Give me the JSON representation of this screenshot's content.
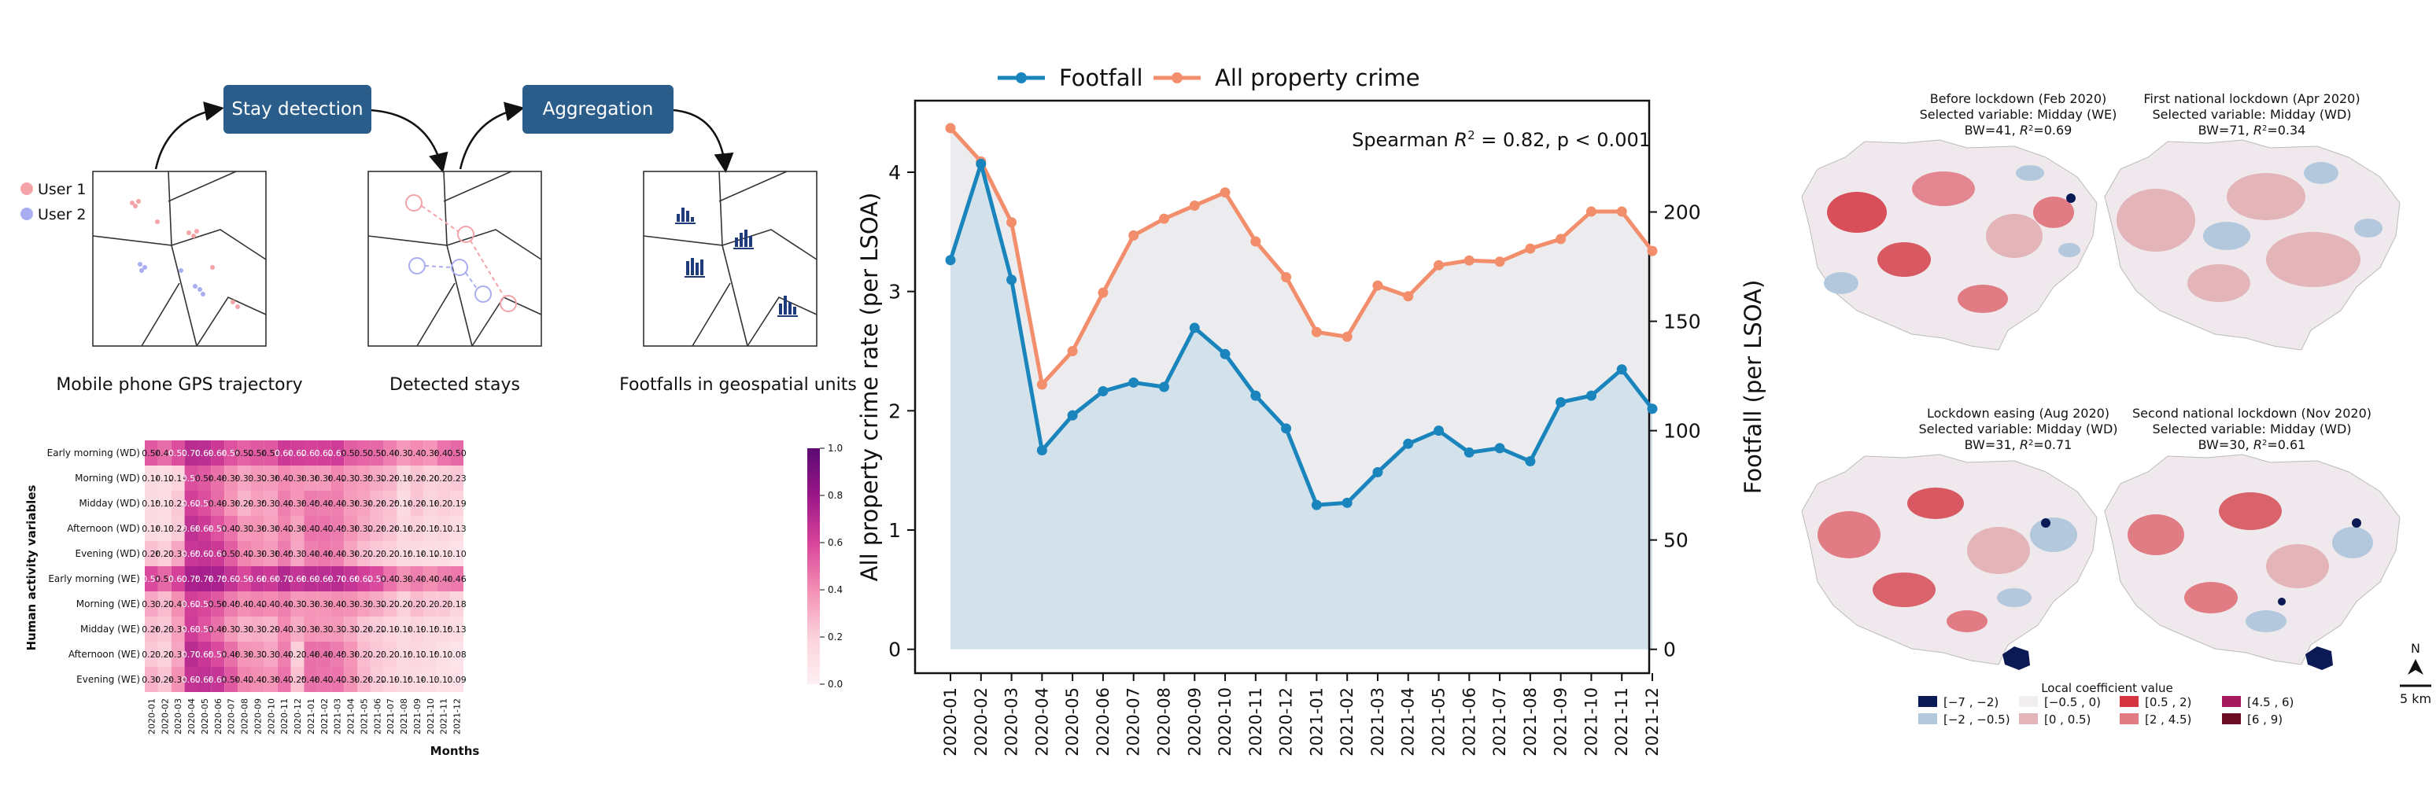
{
  "pipeline": {
    "steps": [
      "Stay detection",
      "Aggregation"
    ],
    "legend": [
      "User 1",
      "User 2"
    ],
    "captions": [
      "Mobile phone GPS trajectory",
      "Detected stays",
      "Footfalls in geospatial units"
    ],
    "colors": {
      "step_box": "#2a5d8a",
      "user1": "#f4a3a8",
      "user2": "#a9aef0",
      "bars": "#1f3b7a"
    }
  },
  "chart_data": [
    {
      "type": "heatmap",
      "xlabel": "Months",
      "ylabel": "Human activity  variables",
      "columns": [
        "2020-01",
        "2020-02",
        "2020-03",
        "2020-04",
        "2020-05",
        "2020-06",
        "2020-07",
        "2020-08",
        "2020-09",
        "2020-10",
        "2020-11",
        "2020-12",
        "2021-01",
        "2021-02",
        "2021-03",
        "2021-04",
        "2021-05",
        "2021-06",
        "2021-07",
        "2021-08",
        "2021-09",
        "2021-10",
        "2021-11",
        "2021-12"
      ],
      "rows": [
        "Early morning (WD)",
        "Morning (WD)",
        "Midday (WD)",
        "Afternoon (WD)",
        "Evening (WD)",
        "Early morning (WE)",
        "Morning (WE)",
        "Midday (WE)",
        "Afternoon (WE)",
        "Evening (WE)"
      ],
      "values": [
        [
          0.54,
          0.49,
          0.57,
          0.7,
          0.69,
          0.64,
          0.56,
          0.52,
          0.54,
          0.54,
          0.64,
          0.62,
          0.61,
          0.62,
          0.63,
          0.53,
          0.51,
          0.5,
          0.44,
          0.37,
          0.41,
          0.38,
          0.47,
          0.5
        ],
        [
          0.14,
          0.12,
          0.19,
          0.57,
          0.54,
          0.48,
          0.39,
          0.33,
          0.37,
          0.36,
          0.41,
          0.38,
          0.36,
          0.36,
          0.42,
          0.37,
          0.35,
          0.32,
          0.29,
          0.18,
          0.24,
          0.2,
          0.21,
          0.23
        ],
        [
          0.15,
          0.13,
          0.23,
          0.62,
          0.57,
          0.49,
          0.38,
          0.29,
          0.35,
          0.33,
          0.44,
          0.38,
          0.45,
          0.44,
          0.44,
          0.36,
          0.34,
          0.28,
          0.25,
          0.14,
          0.24,
          0.18,
          0.21,
          0.19
        ],
        [
          0.14,
          0.13,
          0.22,
          0.68,
          0.64,
          0.56,
          0.47,
          0.37,
          0.38,
          0.34,
          0.42,
          0.34,
          0.47,
          0.47,
          0.45,
          0.38,
          0.32,
          0.28,
          0.24,
          0.16,
          0.2,
          0.15,
          0.17,
          0.13
        ],
        [
          0.26,
          0.21,
          0.33,
          0.65,
          0.67,
          0.64,
          0.53,
          0.42,
          0.39,
          0.36,
          0.45,
          0.33,
          0.44,
          0.46,
          0.44,
          0.34,
          0.27,
          0.23,
          0.21,
          0.15,
          0.14,
          0.12,
          0.13,
          0.1
        ],
        [
          0.58,
          0.5,
          0.61,
          0.75,
          0.76,
          0.75,
          0.67,
          0.59,
          0.66,
          0.64,
          0.72,
          0.66,
          0.69,
          0.69,
          0.7,
          0.66,
          0.62,
          0.58,
          0.47,
          0.39,
          0.44,
          0.4,
          0.44,
          0.46
        ],
        [
          0.33,
          0.27,
          0.4,
          0.62,
          0.59,
          0.54,
          0.45,
          0.4,
          0.42,
          0.41,
          0.44,
          0.37,
          0.38,
          0.38,
          0.4,
          0.39,
          0.35,
          0.32,
          0.27,
          0.2,
          0.27,
          0.23,
          0.23,
          0.18
        ],
        [
          0.26,
          0.23,
          0.35,
          0.63,
          0.56,
          0.48,
          0.37,
          0.3,
          0.31,
          0.29,
          0.41,
          0.31,
          0.38,
          0.37,
          0.37,
          0.32,
          0.24,
          0.22,
          0.19,
          0.14,
          0.19,
          0.15,
          0.15,
          0.13
        ],
        [
          0.23,
          0.2,
          0.33,
          0.7,
          0.65,
          0.58,
          0.48,
          0.38,
          0.37,
          0.33,
          0.44,
          0.21,
          0.48,
          0.48,
          0.45,
          0.38,
          0.27,
          0.23,
          0.21,
          0.15,
          0.17,
          0.15,
          0.11,
          0.08
        ],
        [
          0.3,
          0.24,
          0.39,
          0.67,
          0.68,
          0.66,
          0.54,
          0.42,
          0.4,
          0.38,
          0.47,
          0.25,
          0.48,
          0.47,
          0.47,
          0.39,
          0.28,
          0.22,
          0.19,
          0.15,
          0.14,
          0.13,
          0.11,
          0.09
        ]
      ],
      "colorbar": {
        "range": [
          0.0,
          1.0
        ],
        "ticks": [
          "0.0",
          "0.2",
          "0.4",
          "0.6",
          "0.8",
          "1.0"
        ],
        "low_color": "#fff0f3",
        "high_color": "#6b0f7a"
      }
    },
    {
      "type": "line",
      "categories": [
        "2020-01",
        "2020-02",
        "2020-03",
        "2020-04",
        "2020-05",
        "2020-06",
        "2020-07",
        "2020-08",
        "2020-09",
        "2020-10",
        "2020-11",
        "2020-12",
        "2021-01",
        "2021-02",
        "2021-03",
        "2021-04",
        "2021-05",
        "2021-06",
        "2021-07",
        "2021-08",
        "2021-09",
        "2021-10",
        "2021-11",
        "2021-12"
      ],
      "series": [
        {
          "name": "Footfall",
          "axis": "right",
          "color": "#1a85bd",
          "values": [
            178,
            222,
            169,
            91,
            107,
            118,
            122,
            120,
            147,
            135,
            116,
            101,
            66,
            67,
            81,
            94,
            100,
            90,
            92,
            86,
            113,
            116,
            128,
            110
          ]
        },
        {
          "name": "All property crime",
          "axis": "left",
          "color": "#f28e6b",
          "values": [
            4.37,
            4.09,
            3.58,
            2.22,
            2.5,
            2.99,
            3.47,
            3.61,
            3.72,
            3.83,
            3.42,
            3.12,
            2.66,
            2.62,
            3.05,
            2.96,
            3.22,
            3.26,
            3.25,
            3.36,
            3.44,
            3.67,
            3.67,
            3.34
          ]
        }
      ],
      "ylabel_left": "All property crime rate (per LSOA)",
      "ylabel_right": "Footfall (per LSOA)",
      "ylim_left": [
        -0.2,
        4.6
      ],
      "ylim_right": [
        -10.9,
        250.9
      ],
      "yticks_left": [
        0,
        1,
        2,
        3,
        4
      ],
      "yticks_right": [
        0,
        50,
        100,
        150,
        200
      ],
      "annotation": "Spearman R² = 0.82, p < 0.001",
      "legend_position": "top",
      "fill_colors": {
        "footfall_area": "#d3e1ea",
        "crime_area": "#ececef"
      }
    },
    {
      "type": "map",
      "panels": [
        {
          "title": "Before lockdown (Feb 2020)",
          "variable": "Selected variable: Midday (WE)",
          "stat": "BW=41, R²=0.69"
        },
        {
          "title": "First national lockdown (Apr 2020)",
          "variable": "Selected variable: Midday (WD)",
          "stat": "BW=71, R²=0.34"
        },
        {
          "title": "Lockdown easing (Aug 2020)",
          "variable": "Selected variable: Midday (WD)",
          "stat": "BW=31, R²=0.71"
        },
        {
          "title": "Second national lockdown (Nov 2020)",
          "variable": "Selected variable: Midday (WD)",
          "stat": "BW=30, R²=0.61"
        }
      ],
      "legend_title": "Local coefficient value",
      "legend": [
        {
          "label": "[−7 , −2)",
          "color": "#0b1a55"
        },
        {
          "label": "[−2 , −0.5)",
          "color": "#b3c8dc"
        },
        {
          "label": "[−0.5 , 0)",
          "color": "#f1eef0"
        },
        {
          "label": "[0 , 0.5)",
          "color": "#e3b4b8"
        },
        {
          "label": "[0.5 , 2)",
          "color": "#d3343f"
        },
        {
          "label": "[2 , 4.5)",
          "color": "#e17b84"
        },
        {
          "label": "[4.5 , 6)",
          "color": "#a3195b"
        },
        {
          "label": "[6 , 9)",
          "color": "#6a0d24"
        }
      ],
      "north": "N",
      "scale": "5 km"
    }
  ]
}
